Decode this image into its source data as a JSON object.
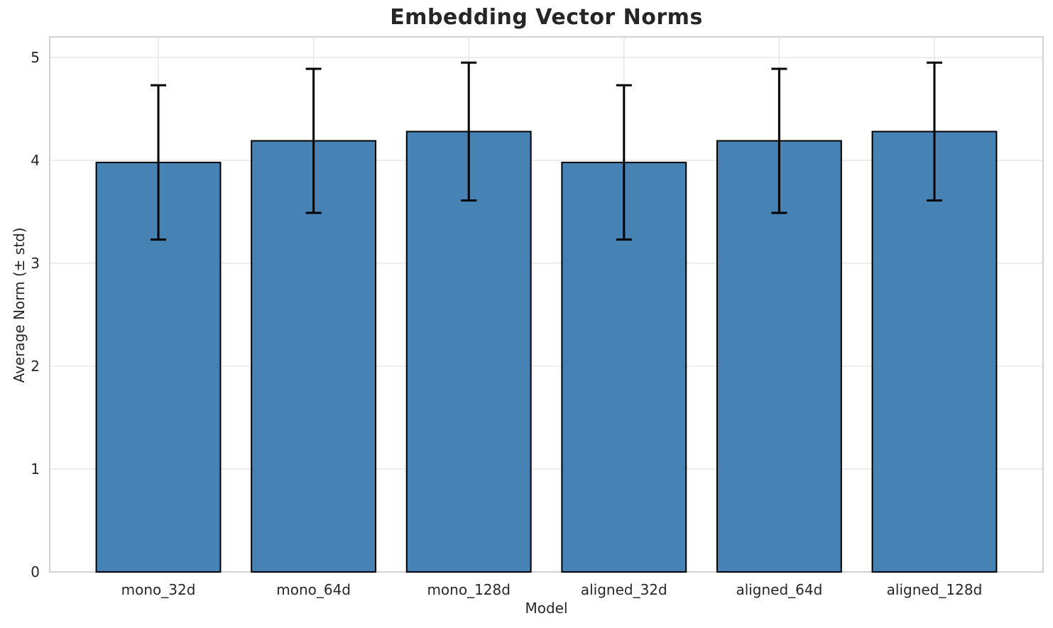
{
  "figure": {
    "title": "Embedding Vector Norms",
    "xlabel": "Model",
    "ylabel": "Average Norm (± std)"
  },
  "chart_data": {
    "type": "bar",
    "title": "Embedding Vector Norms",
    "xlabel": "Model",
    "ylabel": "Average Norm (± std)",
    "categories": [
      "mono_32d",
      "mono_64d",
      "mono_128d",
      "aligned_32d",
      "aligned_64d",
      "aligned_128d"
    ],
    "values": [
      3.98,
      4.19,
      4.28,
      3.98,
      4.19,
      4.28
    ],
    "errors": [
      0.75,
      0.7,
      0.67,
      0.75,
      0.7,
      0.67
    ],
    "yticks": [
      0,
      1,
      2,
      3,
      4,
      5
    ],
    "ylim": [
      0,
      5.2
    ],
    "xlim": [
      -0.7,
      5.7
    ],
    "bar_width": 0.8,
    "grid": true,
    "legend_position": "none",
    "style": {
      "bar_color": "#4682b4",
      "bar_edge_color": "#000000",
      "error_color": "#000000",
      "grid_color": "#e7e7e7",
      "spine_color": "#d2d2d2",
      "text_color": "#262626",
      "background": "#ffffff"
    }
  }
}
